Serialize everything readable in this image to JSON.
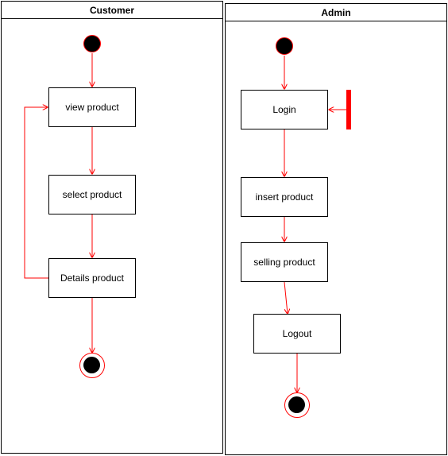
{
  "colors": {
    "edge": "#ff0000",
    "border": "#000000",
    "fill": "#ffffff",
    "node_fill": "#000000"
  },
  "lanes": {
    "customer": {
      "title": "Customer",
      "nodes": {
        "view": "view product",
        "select": "select product",
        "details": "Details product"
      }
    },
    "admin": {
      "title": "Admin",
      "nodes": {
        "login": "Login",
        "insert": "insert product",
        "selling": "selling product",
        "logout": "Logout"
      }
    }
  }
}
